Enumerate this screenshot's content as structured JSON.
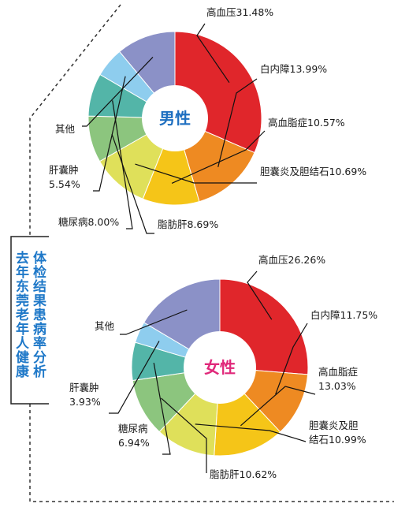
{
  "side_title": {
    "right_column": "体检结果患病率分析",
    "left_column": "去年东莞老年人健康"
  },
  "colors": {
    "hypertension": "#e0262b",
    "cataract": "#ee8a22",
    "hyperlipidemia": "#f5c518",
    "gallstones": "#dfe05a",
    "fatty_liver": "#8cc57e",
    "diabetes": "#53b5a8",
    "hydrocele": "#8ecdee",
    "other": "#8b91c7",
    "male_label": "#1e6fc0",
    "female_label": "#e0287a"
  },
  "chart_data": [
    {
      "type": "pie",
      "center_label": "男性",
      "slices": [
        {
          "key": "hypertension",
          "label": "高血压31.48%",
          "value": 31.48
        },
        {
          "key": "cataract",
          "label": "白内障13.99%",
          "value": 13.99
        },
        {
          "key": "hyperlipidemia",
          "label": "高血脂症10.57%",
          "value": 10.57
        },
        {
          "key": "gallstones",
          "label": "胆囊炎及胆结石10.69%",
          "value": 10.69
        },
        {
          "key": "fatty_liver",
          "label": "脂肪肝8.69%",
          "value": 8.69
        },
        {
          "key": "diabetes",
          "label": "糖尿病8.00%",
          "value": 8.0
        },
        {
          "key": "hydrocele",
          "label": "肝囊肿\n5.54%",
          "value": 5.54
        },
        {
          "key": "other",
          "label": "其他",
          "value": 11.04
        }
      ]
    },
    {
      "type": "pie",
      "center_label": "女性",
      "slices": [
        {
          "key": "hypertension",
          "label": "高血压26.26%",
          "value": 26.26
        },
        {
          "key": "cataract",
          "label": "白内障11.75%",
          "value": 11.75
        },
        {
          "key": "hyperlipidemia",
          "label": "高血脂症\n13.03%",
          "value": 13.03
        },
        {
          "key": "gallstones",
          "label": "胆囊炎及胆\n结石10.99%",
          "value": 10.99
        },
        {
          "key": "fatty_liver",
          "label": "脂肪肝10.62%",
          "value": 10.62
        },
        {
          "key": "diabetes",
          "label": "糖尿病\n6.94%",
          "value": 6.94
        },
        {
          "key": "hydrocele",
          "label": "肝囊肿\n3.93%",
          "value": 3.93
        },
        {
          "key": "other",
          "label": "其他",
          "value": 16.48
        }
      ]
    }
  ]
}
